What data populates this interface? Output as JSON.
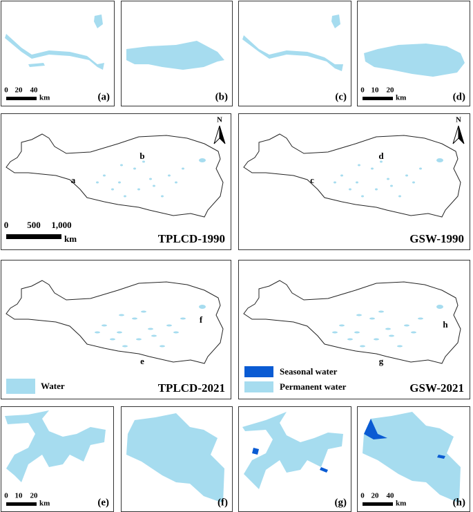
{
  "zoom_panels": [
    {
      "label": "(a)",
      "scale": [
        "0",
        "20",
        "40"
      ],
      "unit": "km"
    },
    {
      "label": "(b)"
    },
    {
      "label": "(c)"
    },
    {
      "label": "(d)",
      "scale": [
        "0",
        "10",
        "20"
      ],
      "unit": "km"
    },
    {
      "label": "(e)",
      "scale": [
        "0",
        "10",
        "20"
      ],
      "unit": "km"
    },
    {
      "label": "(f)"
    },
    {
      "label": "(g)"
    },
    {
      "label": "(h)",
      "scale": [
        "0",
        "20",
        "40"
      ],
      "unit": "km"
    }
  ],
  "maps": [
    {
      "title": "TPLCD-1990",
      "north": "N",
      "points": [
        "a",
        "b"
      ],
      "scale": [
        "0",
        "500",
        "1,000"
      ],
      "unit": "km"
    },
    {
      "title": "GSW-1990",
      "north": "N",
      "points": [
        "c",
        "d"
      ]
    },
    {
      "title": "TPLCD-2021",
      "points": [
        "e",
        "f"
      ],
      "legend": [
        "Water"
      ]
    },
    {
      "title": "GSW-2021",
      "points": [
        "g",
        "h"
      ],
      "legend": [
        "Seasonal water",
        "Permanent water"
      ]
    }
  ]
}
